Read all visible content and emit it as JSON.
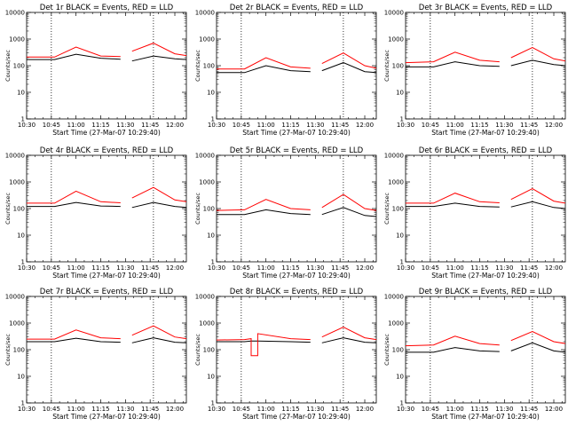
{
  "chart_data": [
    {
      "type": "line",
      "title": "Det 1r BLACK = Events, RED = LLD",
      "xlabel": "Start Time (27-Mar-07 10:29:40)",
      "ylabel": "Counts/sec",
      "y_scale": "log",
      "ylim": [
        1,
        10000
      ],
      "xlim": [
        "10:30",
        "12:07"
      ],
      "x_ticks": [
        "10:30",
        "10:45",
        "11:00",
        "11:15",
        "11:30",
        "11:45",
        "12:00"
      ],
      "y_ticks": [
        "1",
        "10",
        "100",
        "1000",
        "10000"
      ],
      "vlines": [
        "10:45",
        "11:47"
      ],
      "series": [
        {
          "color": "#000000",
          "segments": [
            {
              "x": [
                "10:30",
                "10:47",
                "11:00",
                "11:15",
                "11:27"
              ],
              "y": [
                170,
                170,
                270,
                190,
                175
              ]
            },
            {
              "x": [
                "11:34",
                "11:47",
                "12:00",
                "12:07"
              ],
              "y": [
                150,
                230,
                180,
                170
              ]
            }
          ]
        },
        {
          "color": "#ff0000",
          "segments": [
            {
              "x": [
                "10:30",
                "10:47",
                "11:00",
                "11:15",
                "11:27"
              ],
              "y": [
                210,
                210,
                500,
                230,
                220
              ]
            },
            {
              "x": [
                "11:34",
                "11:47",
                "12:00",
                "12:07"
              ],
              "y": [
                350,
                700,
                280,
                240
              ]
            }
          ]
        }
      ]
    },
    {
      "type": "line",
      "title": "Det 2r BLACK = Events, RED = LLD",
      "xlabel": "Start Time (27-Mar-07 10:29:40)",
      "ylabel": "Counts/sec",
      "y_scale": "log",
      "ylim": [
        1,
        10000
      ],
      "xlim": [
        "10:30",
        "12:07"
      ],
      "x_ticks": [
        "10:30",
        "10:45",
        "11:00",
        "11:15",
        "11:30",
        "11:45",
        "12:00"
      ],
      "y_ticks": [
        "1",
        "10",
        "100",
        "1000",
        "10000"
      ],
      "vlines": [
        "10:45",
        "11:47"
      ],
      "series": [
        {
          "color": "#000000",
          "segments": [
            {
              "x": [
                "10:30",
                "10:47",
                "11:00",
                "11:15",
                "11:27"
              ],
              "y": [
                55,
                55,
                100,
                65,
                60
              ]
            },
            {
              "x": [
                "11:34",
                "11:47",
                "12:00",
                "12:07"
              ],
              "y": [
                65,
                130,
                60,
                55
              ]
            }
          ]
        },
        {
          "color": "#ff0000",
          "segments": [
            {
              "x": [
                "10:30",
                "10:47",
                "11:00",
                "11:15",
                "11:27"
              ],
              "y": [
                75,
                75,
                200,
                90,
                80
              ]
            },
            {
              "x": [
                "11:34",
                "11:47",
                "12:00",
                "12:07"
              ],
              "y": [
                120,
                300,
                100,
                80
              ]
            }
          ]
        }
      ]
    },
    {
      "type": "line",
      "title": "Det 3r BLACK = Events, RED = LLD",
      "xlabel": "Start Time (27-Mar-07 10:29:40)",
      "ylabel": "Counts/sec",
      "y_scale": "log",
      "ylim": [
        1,
        10000
      ],
      "xlim": [
        "10:30",
        "12:07"
      ],
      "x_ticks": [
        "10:30",
        "10:45",
        "11:00",
        "11:15",
        "11:30",
        "11:45",
        "12:00"
      ],
      "y_ticks": [
        "1",
        "10",
        "100",
        "1000",
        "10000"
      ],
      "vlines": [
        "10:45",
        "11:47"
      ],
      "series": [
        {
          "color": "#000000",
          "segments": [
            {
              "x": [
                "10:30",
                "10:47",
                "11:00",
                "11:15",
                "11:27"
              ],
              "y": [
                90,
                90,
                140,
                100,
                95
              ]
            },
            {
              "x": [
                "11:34",
                "11:47",
                "12:00",
                "12:07"
              ],
              "y": [
                100,
                160,
                110,
                100
              ]
            }
          ]
        },
        {
          "color": "#ff0000",
          "segments": [
            {
              "x": [
                "10:30",
                "10:47",
                "11:00",
                "11:15",
                "11:27"
              ],
              "y": [
                130,
                140,
                320,
                160,
                140
              ]
            },
            {
              "x": [
                "11:34",
                "11:47",
                "12:00",
                "12:07"
              ],
              "y": [
                200,
                480,
                180,
                150
              ]
            }
          ]
        }
      ]
    },
    {
      "type": "line",
      "title": "Det 4r BLACK = Events, RED = LLD",
      "xlabel": "Start Time (27-Mar-07 10:29:40)",
      "ylabel": "Counts/sec",
      "y_scale": "log",
      "ylim": [
        1,
        10000
      ],
      "xlim": [
        "10:30",
        "12:07"
      ],
      "x_ticks": [
        "10:30",
        "10:45",
        "11:00",
        "11:15",
        "11:30",
        "11:45",
        "12:00"
      ],
      "y_ticks": [
        "1",
        "10",
        "100",
        "1000",
        "10000"
      ],
      "vlines": [
        "10:45",
        "11:47"
      ],
      "series": [
        {
          "color": "#000000",
          "segments": [
            {
              "x": [
                "10:30",
                "10:47",
                "11:00",
                "11:15",
                "11:27"
              ],
              "y": [
                120,
                120,
                170,
                125,
                120
              ]
            },
            {
              "x": [
                "11:34",
                "11:47",
                "12:00",
                "12:07"
              ],
              "y": [
                110,
                170,
                120,
                110
              ]
            }
          ]
        },
        {
          "color": "#ff0000",
          "segments": [
            {
              "x": [
                "10:30",
                "10:47",
                "11:00",
                "11:15",
                "11:27"
              ],
              "y": [
                160,
                160,
                450,
                180,
                165
              ]
            },
            {
              "x": [
                "11:34",
                "11:47",
                "12:00",
                "12:07"
              ],
              "y": [
                250,
                620,
                210,
                180
              ]
            }
          ]
        }
      ]
    },
    {
      "type": "line",
      "title": "Det 5r BLACK = Events, RED = LLD",
      "xlabel": "Start Time (27-Mar-07 10:29:40)",
      "ylabel": "Counts/sec",
      "y_scale": "log",
      "ylim": [
        1,
        10000
      ],
      "xlim": [
        "10:30",
        "12:07"
      ],
      "x_ticks": [
        "10:30",
        "10:45",
        "11:00",
        "11:15",
        "11:30",
        "11:45",
        "12:00"
      ],
      "y_ticks": [
        "1",
        "10",
        "100",
        "1000",
        "10000"
      ],
      "vlines": [
        "10:45",
        "11:47"
      ],
      "series": [
        {
          "color": "#000000",
          "segments": [
            {
              "x": [
                "10:30",
                "10:47",
                "11:00",
                "11:15",
                "11:27"
              ],
              "y": [
                60,
                60,
                90,
                65,
                60
              ]
            },
            {
              "x": [
                "11:34",
                "11:47",
                "12:00",
                "12:07"
              ],
              "y": [
                60,
                110,
                55,
                50
              ]
            }
          ]
        },
        {
          "color": "#ff0000",
          "segments": [
            {
              "x": [
                "10:30",
                "10:47",
                "11:00",
                "11:15",
                "11:27"
              ],
              "y": [
                85,
                90,
                220,
                100,
                90
              ]
            },
            {
              "x": [
                "11:34",
                "11:47",
                "12:00",
                "12:07"
              ],
              "y": [
                110,
                340,
                100,
                85
              ]
            }
          ]
        }
      ]
    },
    {
      "type": "line",
      "title": "Det 6r BLACK = Events, RED = LLD",
      "xlabel": "Start Time (27-Mar-07 10:29:40)",
      "ylabel": "Counts/sec",
      "y_scale": "log",
      "ylim": [
        1,
        10000
      ],
      "xlim": [
        "10:30",
        "12:07"
      ],
      "x_ticks": [
        "10:30",
        "10:45",
        "11:00",
        "11:15",
        "11:30",
        "11:45",
        "12:00"
      ],
      "y_ticks": [
        "1",
        "10",
        "100",
        "1000",
        "10000"
      ],
      "vlines": [
        "10:45",
        "11:47"
      ],
      "series": [
        {
          "color": "#000000",
          "segments": [
            {
              "x": [
                "10:30",
                "10:47",
                "11:00",
                "11:15",
                "11:27"
              ],
              "y": [
                120,
                120,
                160,
                120,
                115
              ]
            },
            {
              "x": [
                "11:34",
                "11:47",
                "12:00",
                "12:07"
              ],
              "y": [
                115,
                180,
                110,
                100
              ]
            }
          ]
        },
        {
          "color": "#ff0000",
          "segments": [
            {
              "x": [
                "10:30",
                "10:47",
                "11:00",
                "11:15",
                "11:27"
              ],
              "y": [
                160,
                160,
                380,
                180,
                165
              ]
            },
            {
              "x": [
                "11:34",
                "11:47",
                "12:00",
                "12:07"
              ],
              "y": [
                220,
                560,
                190,
                160
              ]
            }
          ]
        }
      ]
    },
    {
      "type": "line",
      "title": "Det 7r BLACK = Events, RED = LLD",
      "xlabel": "Start Time (27-Mar-07 10:29:40)",
      "ylabel": "Counts/sec",
      "y_scale": "log",
      "ylim": [
        1,
        10000
      ],
      "xlim": [
        "10:30",
        "12:07"
      ],
      "x_ticks": [
        "10:30",
        "10:45",
        "11:00",
        "11:15",
        "11:30",
        "11:45",
        "12:00"
      ],
      "y_ticks": [
        "1",
        "10",
        "100",
        "1000",
        "10000"
      ],
      "vlines": [
        "10:45",
        "11:47"
      ],
      "series": [
        {
          "color": "#000000",
          "segments": [
            {
              "x": [
                "10:30",
                "10:47",
                "11:00",
                "11:15",
                "11:27"
              ],
              "y": [
                200,
                200,
                270,
                200,
                190
              ]
            },
            {
              "x": [
                "11:34",
                "11:47",
                "12:00",
                "12:07"
              ],
              "y": [
                180,
                280,
                190,
                180
              ]
            }
          ]
        },
        {
          "color": "#ff0000",
          "segments": [
            {
              "x": [
                "10:30",
                "10:47",
                "11:00",
                "11:15",
                "11:27"
              ],
              "y": [
                250,
                250,
                550,
                280,
                260
              ]
            },
            {
              "x": [
                "11:34",
                "11:47",
                "12:00",
                "12:07"
              ],
              "y": [
                350,
                780,
                300,
                260
              ]
            }
          ]
        }
      ]
    },
    {
      "type": "line",
      "title": "Det 8r BLACK = Events, RED = LLD",
      "xlabel": "Start Time (27-Mar-07 10:29:40)",
      "ylabel": "Counts/sec",
      "y_scale": "log",
      "ylim": [
        1,
        10000
      ],
      "xlim": [
        "10:30",
        "12:07"
      ],
      "x_ticks": [
        "10:30",
        "10:45",
        "11:00",
        "11:15",
        "11:30",
        "11:45",
        "12:00"
      ],
      "y_ticks": [
        "1",
        "10",
        "100",
        "1000",
        "10000"
      ],
      "vlines": [
        "10:45",
        "11:47"
      ],
      "series": [
        {
          "color": "#000000",
          "segments": [
            {
              "x": [
                "10:30",
                "10:47",
                "10:51",
                "10:51",
                "10:55",
                "10:55",
                "11:15",
                "11:27"
              ],
              "y": [
                200,
                200,
                210,
                210,
                210,
                210,
                200,
                190
              ]
            },
            {
              "x": [
                "11:34",
                "11:47",
                "12:00",
                "12:07"
              ],
              "y": [
                180,
                280,
                190,
                180
              ]
            }
          ]
        },
        {
          "color": "#ff0000",
          "segments": [
            {
              "x": [
                "10:30",
                "10:47",
                "10:51",
                "10:51",
                "10:55",
                "10:55",
                "11:15",
                "11:27"
              ],
              "y": [
                230,
                240,
                260,
                60,
                60,
                400,
                260,
                240
              ]
            },
            {
              "x": [
                "11:34",
                "11:47",
                "12:00",
                "12:07"
              ],
              "y": [
                300,
                700,
                280,
                240
              ]
            }
          ]
        }
      ]
    },
    {
      "type": "line",
      "title": "Det 9r BLACK = Events, RED = LLD",
      "xlabel": "Start Time (27-Mar-07 10:29:40)",
      "ylabel": "Counts/sec",
      "y_scale": "log",
      "ylim": [
        1,
        10000
      ],
      "xlim": [
        "10:30",
        "12:07"
      ],
      "x_ticks": [
        "10:30",
        "10:45",
        "11:00",
        "11:15",
        "11:30",
        "11:45",
        "12:00"
      ],
      "y_ticks": [
        "1",
        "10",
        "100",
        "1000",
        "10000"
      ],
      "vlines": [
        "10:45",
        "11:47"
      ],
      "series": [
        {
          "color": "#000000",
          "segments": [
            {
              "x": [
                "10:30",
                "10:47",
                "11:00",
                "11:15",
                "11:27"
              ],
              "y": [
                80,
                80,
                120,
                90,
                85
              ]
            },
            {
              "x": [
                "11:34",
                "11:47",
                "12:00",
                "12:07"
              ],
              "y": [
                90,
                180,
                90,
                80
              ]
            }
          ]
        },
        {
          "color": "#ff0000",
          "segments": [
            {
              "x": [
                "10:30",
                "10:47",
                "11:00",
                "11:15",
                "11:27"
              ],
              "y": [
                140,
                150,
                320,
                170,
                150
              ]
            },
            {
              "x": [
                "11:34",
                "11:47",
                "12:00",
                "12:07"
              ],
              "y": [
                220,
                480,
                200,
                170
              ]
            }
          ]
        }
      ]
    }
  ]
}
